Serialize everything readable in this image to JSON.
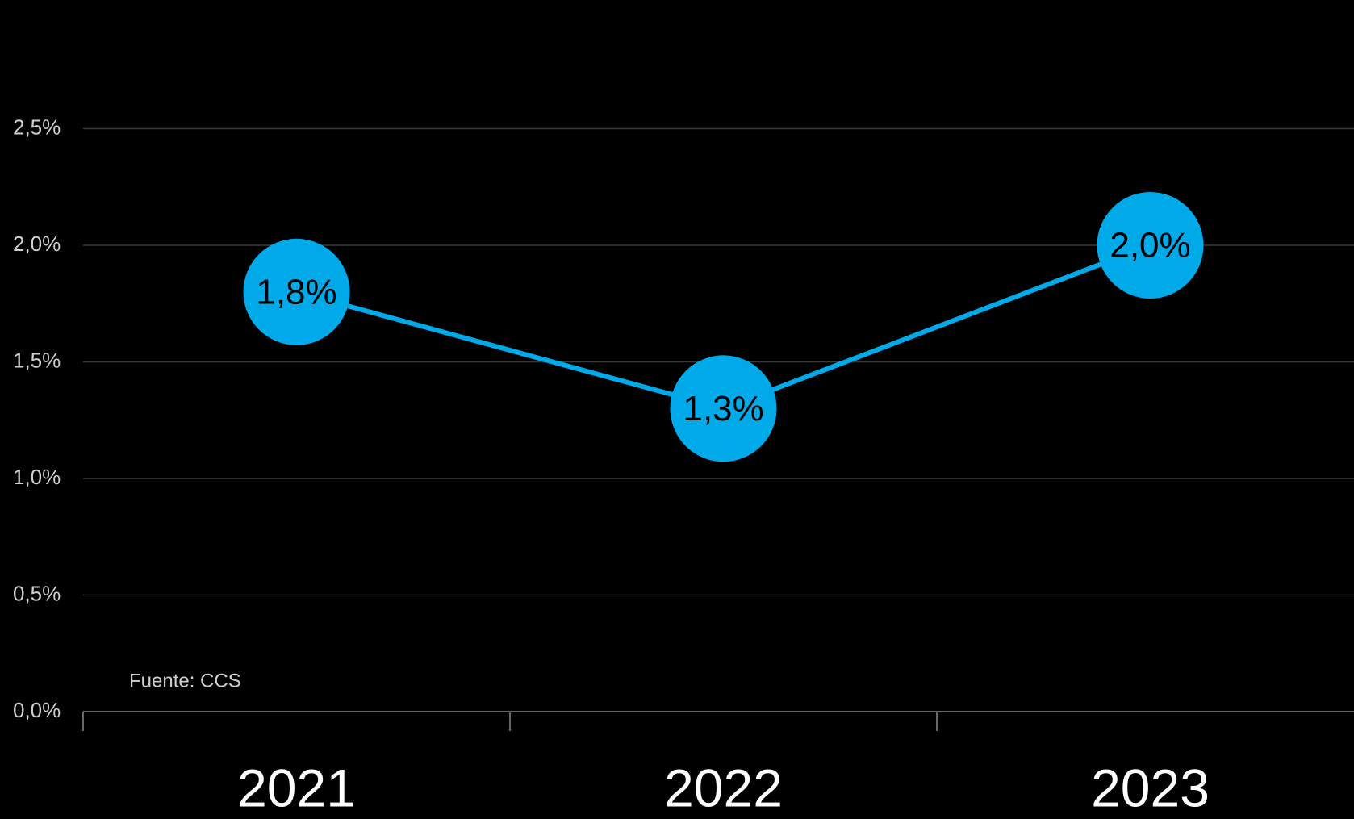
{
  "chart_data": {
    "type": "line",
    "categories": [
      "2021",
      "2022",
      "2023"
    ],
    "series": [
      {
        "name": "",
        "color": "#00a9e8",
        "values": [
          1.8,
          1.3,
          2.0
        ],
        "value_labels": [
          "1,8%",
          "1,3%",
          "2,0%"
        ]
      }
    ],
    "ylim": [
      0,
      3.0
    ],
    "yticks": [
      {
        "value": 0,
        "label": "0,0%"
      },
      {
        "value": 0.5,
        "label": "0,5%"
      },
      {
        "value": 1.0,
        "label": "1,0%"
      },
      {
        "value": 1.5,
        "label": "1,5%"
      },
      {
        "value": 2.0,
        "label": "2,0%"
      },
      {
        "value": 2.5,
        "label": "2,5%"
      }
    ],
    "grid": true,
    "source": "Fuente: CCS"
  }
}
